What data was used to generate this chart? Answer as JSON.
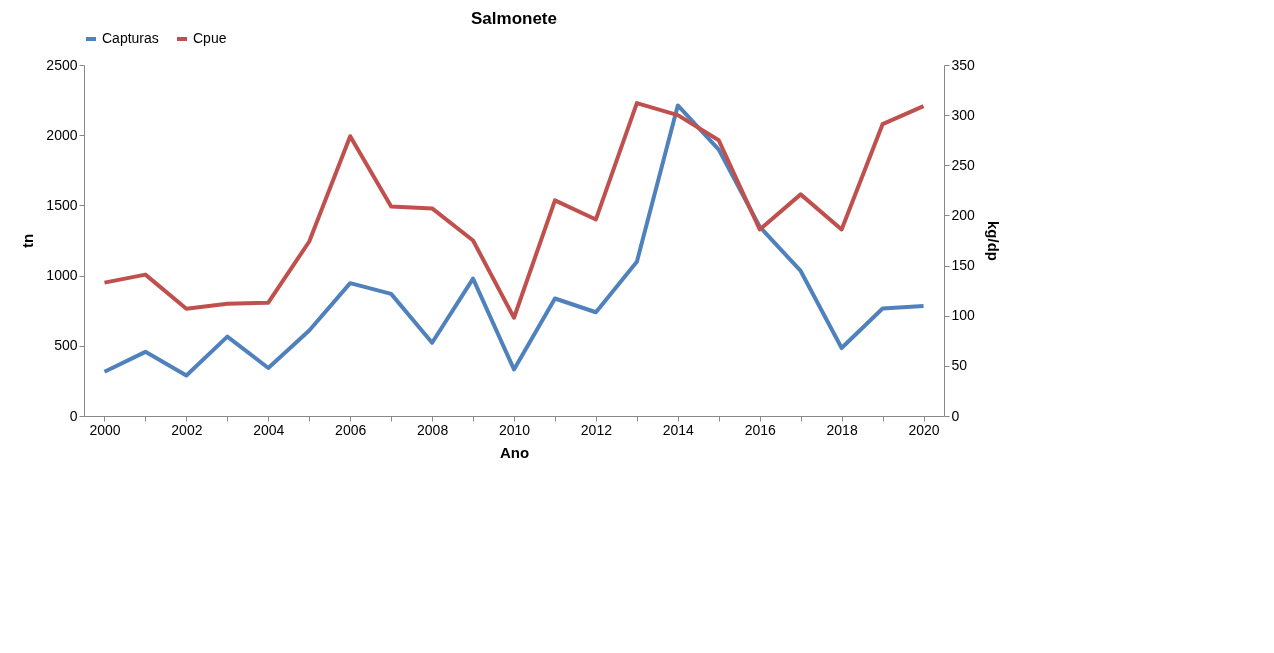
{
  "chart_data": {
    "type": "line",
    "title": "Salmonete",
    "xlabel": "Ano",
    "ylabel": "tn",
    "y2label": "kg/dp",
    "categories": [
      "2000",
      null,
      "2002",
      null,
      "2004",
      null,
      "2006",
      null,
      "2008",
      null,
      "2010",
      null,
      "2012",
      null,
      "2014",
      null,
      "2016",
      null,
      "2018",
      null,
      "2020"
    ],
    "series": [
      {
        "name": "Capturas",
        "color": "#4f81bd",
        "values": [
          315,
          457,
          288,
          565,
          342,
          609,
          946,
          870,
          522,
          978,
          332,
          837,
          739,
          1098,
          2212,
          1897,
          1348,
          1033,
          484,
          766,
          783
        ]
      },
      {
        "name": "Cpue",
        "color": "#c0504d",
        "axis": "y2",
        "values": [
          133,
          141,
          107,
          112,
          113,
          174,
          279,
          209,
          207,
          175,
          98,
          215,
          196,
          312,
          300,
          275,
          186,
          221,
          186,
          291,
          309
        ]
      }
    ],
    "ylim": [
      0,
      2500
    ],
    "yticks": [
      0,
      500,
      1000,
      1500,
      2000,
      2500
    ],
    "y2lim": [
      0,
      350
    ],
    "y2ticks": [
      0,
      50,
      100,
      150,
      200,
      250,
      300,
      350
    ],
    "legend": "top",
    "grid": false,
    "marker": "none",
    "line_style": "solid"
  }
}
